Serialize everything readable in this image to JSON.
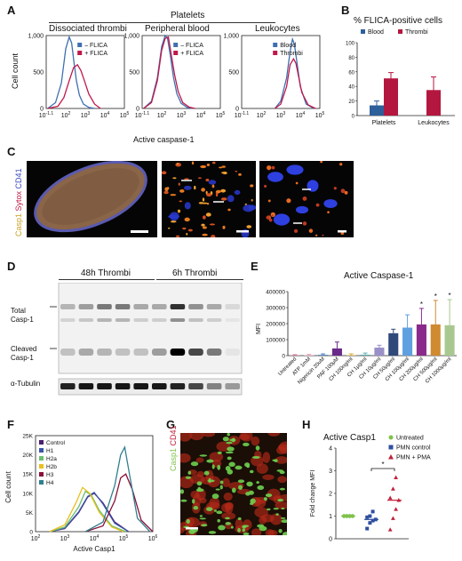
{
  "panel_letters": {
    "a": "A",
    "b": "B",
    "c": "C",
    "d": "D",
    "e": "E",
    "f": "F",
    "g": "G",
    "h": "H"
  },
  "panel_a": {
    "group_title": "Platelets",
    "titles": [
      "Dissociated thrombi",
      "Peripheral blood",
      "Leukocytes"
    ],
    "ylabel": "Cell count",
    "xlabel": "Active caspase-1",
    "y_ticks": [
      "1,000",
      "500",
      "0"
    ],
    "x_ticks": [
      "10^-1.1",
      "10^2",
      "10^3",
      "10^4",
      "10^5"
    ],
    "legend1": [
      "– FLICA",
      "+ FLICA"
    ],
    "legend2": [
      "– FLICA",
      "+ FLICA"
    ],
    "legend3": [
      "Blood",
      "Thrombi"
    ],
    "colors": {
      "blue": "#3f6fb0",
      "red": "#c0184a"
    }
  },
  "panel_b": {
    "title": "% FLICA-positive cells",
    "legend": [
      "Blood",
      "Thrombi"
    ],
    "categories": [
      "Platelets",
      "Leukocytes"
    ],
    "y_ticks": [
      "100",
      "80",
      "60",
      "40",
      "20",
      "0"
    ],
    "colors": {
      "blood": "#2d5f9a",
      "thrombi": "#b3173f"
    }
  },
  "panel_c": {
    "ylabel_parts": [
      "Casp1",
      "Sytox",
      "CD41"
    ]
  },
  "panel_d": {
    "groups": [
      "48h Thrombi",
      "6h Thrombi"
    ],
    "row_labels": [
      "Total\nCasp-1",
      "Cleaved\nCasp-1",
      "α-Tubulin"
    ]
  },
  "panel_e": {
    "title": "Active Caspase-1",
    "ylabel": "MFI",
    "y_ticks": [
      "400000",
      "300000",
      "200000",
      "100000",
      "0"
    ],
    "categories": [
      "Untreated",
      "ATP 1mM",
      "Nigericin 20uM",
      "PAF 100μM",
      "CH 100ng/ml",
      "CH 1μg/ml",
      "CH 10μg/ml",
      "CH 50μg/ml",
      "CH 100μg/ml",
      "CH 200μg/ml",
      "CH 500μg/ml",
      "CH 1000μg/ml"
    ],
    "significance_mark": "*"
  },
  "panel_f": {
    "ylabel": "Cell count",
    "xlabel": "Active Casp1",
    "y_ticks": [
      "25K",
      "20K",
      "15K",
      "10K",
      "5K",
      "0"
    ],
    "x_ticks": [
      "10^2",
      "10^3",
      "10^4",
      "10^5",
      "10^6"
    ],
    "legend": [
      "Control",
      "H1",
      "H2a",
      "H2b",
      "H3",
      "H4"
    ]
  },
  "panel_g": {
    "ylabel_parts": [
      "Casp1",
      "CD41"
    ]
  },
  "panel_h": {
    "title": "Active Casp1",
    "ylabel": "Fold change MFI",
    "y_ticks": [
      "4",
      "3",
      "2",
      "1",
      "0"
    ],
    "legend": [
      "Untreated",
      "PMN control",
      "PMN + PMA"
    ],
    "significance_mark": "*"
  },
  "chart_data": [
    {
      "type": "line",
      "title": "Dissociated thrombi",
      "xlabel": "Active caspase-1",
      "ylabel": "Cell count",
      "x_scale": "log",
      "ylim": [
        0,
        1000
      ],
      "series": [
        {
          "name": "– FLICA",
          "color": "#3f6fb0",
          "x": [
            12,
            30,
            60,
            100,
            150,
            200,
            260,
            350,
            500,
            800,
            1500,
            3000
          ],
          "y": [
            0,
            80,
            350,
            820,
            980,
            900,
            650,
            380,
            180,
            60,
            15,
            0
          ]
        },
        {
          "name": "+ FLICA",
          "color": "#c0184a",
          "x": [
            12,
            40,
            80,
            150,
            250,
            400,
            600,
            900,
            1500,
            3000,
            6000
          ],
          "y": [
            0,
            30,
            150,
            380,
            560,
            600,
            520,
            380,
            200,
            60,
            0
          ]
        }
      ]
    },
    {
      "type": "line",
      "title": "Peripheral blood",
      "xlabel": "Active caspase-1",
      "ylabel": "Cell count",
      "x_scale": "log",
      "ylim": [
        0,
        1000
      ],
      "series": [
        {
          "name": "– FLICA",
          "color": "#3f6fb0",
          "x": [
            12,
            30,
            60,
            100,
            150,
            200,
            280,
            400,
            600,
            1000,
            2000,
            4000
          ],
          "y": [
            0,
            100,
            420,
            850,
            1000,
            960,
            720,
            430,
            200,
            70,
            15,
            0
          ]
        },
        {
          "name": "+ FLICA",
          "color": "#c0184a",
          "x": [
            12,
            30,
            60,
            100,
            150,
            220,
            300,
            450,
            700,
            1200,
            2500,
            5000
          ],
          "y": [
            0,
            80,
            380,
            800,
            960,
            980,
            760,
            470,
            230,
            80,
            20,
            0
          ]
        }
      ]
    },
    {
      "type": "line",
      "title": "Leukocytes",
      "xlabel": "Active caspase-1",
      "ylabel": "Cell count",
      "x_scale": "log",
      "ylim": [
        0,
        1000
      ],
      "series": [
        {
          "name": "Blood",
          "color": "#3f6fb0",
          "x": [
            500,
            1000,
            2000,
            3000,
            4000,
            5000,
            7000,
            10000,
            20000,
            50000
          ],
          "y": [
            0,
            100,
            420,
            780,
            950,
            880,
            600,
            300,
            60,
            0
          ]
        },
        {
          "name": "Thrombi",
          "color": "#c0184a",
          "x": [
            500,
            1000,
            2000,
            3000,
            4500,
            6000,
            8000,
            12000,
            25000,
            60000
          ],
          "y": [
            0,
            60,
            300,
            600,
            680,
            620,
            450,
            220,
            50,
            0
          ]
        }
      ]
    },
    {
      "type": "bar",
      "title": "% FLICA-positive cells",
      "categories": [
        "Platelets",
        "Leukocytes"
      ],
      "ylim": [
        0,
        100
      ],
      "series": [
        {
          "name": "Blood",
          "values": [
            14,
            null
          ],
          "error": [
            6,
            null
          ]
        },
        {
          "name": "Thrombi",
          "values": [
            51,
            35
          ],
          "error": [
            8,
            18
          ]
        }
      ]
    },
    {
      "type": "bar",
      "title": "Active Caspase-1",
      "ylabel": "MFI",
      "ylim": [
        0,
        400000
      ],
      "categories": [
        "Untreated",
        "ATP 1mM",
        "Nigericin 20uM",
        "PAF 100μM",
        "CH 100ng/ml",
        "CH 1μg/ml",
        "CH 10μg/ml",
        "CH 50μg/ml",
        "CH 100μg/ml",
        "CH 200μg/ml",
        "CH 500μg/ml",
        "CH 1000μg/ml"
      ],
      "values": [
        2000,
        3000,
        5000,
        45000,
        3000,
        6000,
        50000,
        140000,
        175000,
        195000,
        195000,
        190000
      ],
      "errors": [
        4000,
        5000,
        6000,
        40000,
        8000,
        10000,
        15000,
        25000,
        80000,
        100000,
        150000,
        160000
      ],
      "colors": [
        "#e07a9a",
        "#e8a0b8",
        "#4f7fbf",
        "#6a2a8a",
        "#d4b030",
        "#60b0b0",
        "#9a90c8",
        "#2f4a7a",
        "#5fa0e0",
        "#8a2a8a",
        "#d08a30",
        "#a8c890"
      ],
      "significant": [
        false,
        false,
        false,
        false,
        false,
        false,
        false,
        false,
        false,
        true,
        true,
        true
      ]
    },
    {
      "type": "line",
      "xlabel": "Active Casp1",
      "ylabel": "Cell count",
      "x_scale": "log",
      "ylim": [
        0,
        25000
      ],
      "series": [
        {
          "name": "Control",
          "color": "#4b1f6f",
          "x": [
            300,
            1000,
            3000,
            6000,
            10000,
            20000,
            50000,
            150000
          ],
          "y": [
            0,
            800,
            5000,
            9000,
            10000,
            7500,
            2500,
            0
          ]
        },
        {
          "name": "H1",
          "color": "#3a55a8",
          "x": [
            300,
            1000,
            3000,
            6000,
            10000,
            20000,
            50000,
            150000
          ],
          "y": [
            0,
            900,
            5200,
            9200,
            10200,
            7200,
            2200,
            0
          ]
        },
        {
          "name": "H2a",
          "color": "#6cc070",
          "x": [
            300,
            1000,
            3000,
            5000,
            8000,
            15000,
            40000,
            120000
          ],
          "y": [
            0,
            1200,
            6500,
            10500,
            9500,
            5500,
            1500,
            0
          ]
        },
        {
          "name": "H2b",
          "color": "#e8c020",
          "x": [
            300,
            1000,
            2500,
            4000,
            7000,
            15000,
            40000,
            100000
          ],
          "y": [
            0,
            1800,
            7800,
            11500,
            10000,
            5000,
            1200,
            0
          ]
        },
        {
          "name": "H3",
          "color": "#8a1038",
          "x": [
            5000,
            20000,
            50000,
            80000,
            120000,
            200000,
            400000,
            1000000
          ],
          "y": [
            0,
            1500,
            8000,
            14000,
            15000,
            11000,
            3000,
            0
          ]
        },
        {
          "name": "H4",
          "color": "#2f7f8f",
          "x": [
            5000,
            20000,
            50000,
            80000,
            110000,
            160000,
            300000,
            800000
          ],
          "y": [
            0,
            2500,
            12000,
            20000,
            22000,
            15000,
            3500,
            0
          ]
        }
      ]
    },
    {
      "type": "scatter",
      "title": "Active Casp1",
      "ylabel": "Fold change MFI",
      "ylim": [
        0,
        4
      ],
      "series": [
        {
          "name": "Untreated",
          "color": "#7fc24a",
          "marker": "circle",
          "x": [
            1,
            1,
            1,
            1,
            1,
            1,
            1,
            1
          ],
          "y": [
            1.0,
            1.0,
            1.0,
            1.0,
            1.0,
            1.0,
            1.0,
            1.0
          ],
          "median": 1.0
        },
        {
          "name": "PMN control",
          "color": "#2f4f9f",
          "marker": "square",
          "x": [
            2,
            2,
            2,
            2,
            2,
            2,
            2
          ],
          "y": [
            0.45,
            0.7,
            0.8,
            0.85,
            0.95,
            1.0,
            1.2
          ],
          "median": 0.85
        },
        {
          "name": "PMN + PMA",
          "color": "#c0203a",
          "marker": "triangle",
          "x": [
            3,
            3,
            3,
            3,
            3,
            3,
            3
          ],
          "y": [
            0.4,
            0.9,
            1.3,
            1.7,
            1.8,
            2.2,
            2.7
          ],
          "median": 1.7
        }
      ]
    }
  ]
}
